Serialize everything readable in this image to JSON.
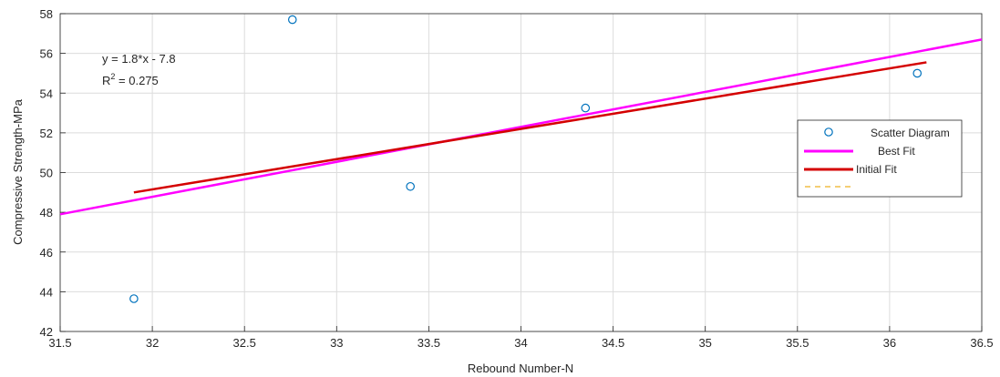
{
  "chart_data": {
    "type": "scatter",
    "title": "",
    "xlabel": "Rebound Number-N",
    "ylabel": "Compressive Strength-MPa",
    "xlim": [
      31.5,
      36.5
    ],
    "ylim": [
      42,
      58
    ],
    "x_ticks": [
      "31.5",
      "32",
      "32.5",
      "33",
      "33.5",
      "34",
      "34.5",
      "35",
      "35.5",
      "36",
      "36.5"
    ],
    "y_ticks": [
      "42",
      "44",
      "46",
      "48",
      "50",
      "52",
      "54",
      "56",
      "58"
    ],
    "grid": true,
    "legend_position": "right",
    "annotation": {
      "equation": "y = 1.8*x - 7.8",
      "r2_prefix": "R",
      "r2_sup": "2",
      "r2_value": " = 0.275"
    },
    "series": [
      {
        "name": "Scatter Diagram",
        "kind": "markers",
        "color": "#0072BD",
        "x": [
          31.9,
          32.76,
          33.4,
          34.35,
          36.15
        ],
        "y": [
          43.65,
          57.7,
          49.3,
          53.25,
          55.0
        ]
      },
      {
        "name": "Best Fit",
        "kind": "line",
        "color": "#FF00FF",
        "x": [
          31.5,
          36.5
        ],
        "y": [
          47.9,
          56.7
        ]
      },
      {
        "name": "Initial Fit",
        "kind": "line",
        "color": "#D40000",
        "x": [
          31.9,
          36.2
        ],
        "y": [
          49.0,
          55.55
        ]
      },
      {
        "name": "",
        "kind": "dashed-line",
        "color": "#EDB120",
        "x": [],
        "y": []
      }
    ]
  }
}
